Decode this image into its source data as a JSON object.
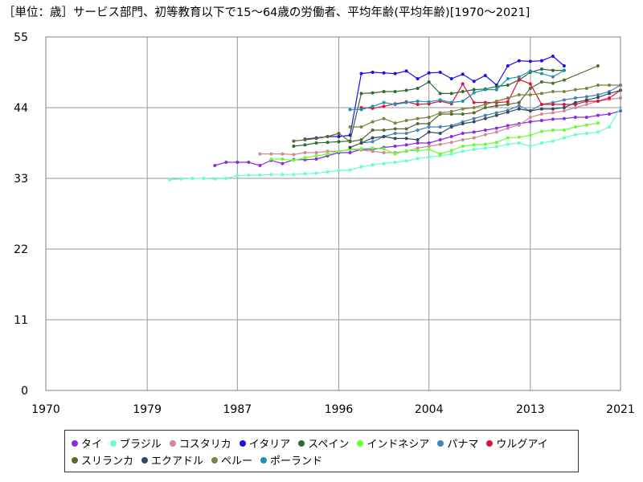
{
  "chart_data": {
    "type": "line",
    "title": "［単位：歳］サービス部門、初等教育以下で15～64歳の労働者、平均年齢(平均年齢)[1970～2021]",
    "xlabel": "",
    "ylabel": "",
    "xlim": [
      1970,
      2021
    ],
    "ylim": [
      0,
      55
    ],
    "xticks": [
      1970,
      1979,
      1987,
      1996,
      2004,
      2013,
      2021
    ],
    "yticks": [
      0,
      11,
      22,
      33,
      44,
      55
    ],
    "grid": true,
    "legend_position": "bottom",
    "series": [
      {
        "name": "タイ",
        "color": "#8a2be2",
        "x": [
          1985,
          1986,
          1987,
          1988,
          1989,
          1990,
          1991,
          1992,
          1993,
          1994,
          1995,
          1996,
          1997,
          1998,
          1999,
          2000,
          2001,
          2002,
          2003,
          2004,
          2005,
          2006,
          2007,
          2008,
          2009,
          2010,
          2011,
          2012,
          2013,
          2014,
          2015,
          2016,
          2017,
          2018,
          2019,
          2020,
          2021
        ],
        "y": [
          35.0,
          35.5,
          35.5,
          35.5,
          35.0,
          35.8,
          35.3,
          35.9,
          35.9,
          36.0,
          36.5,
          37.0,
          37.0,
          37.5,
          37.5,
          37.8,
          38.0,
          38.2,
          38.5,
          38.5,
          39.0,
          39.5,
          40.0,
          40.2,
          40.5,
          40.8,
          41.2,
          41.5,
          41.8,
          42.0,
          42.2,
          42.3,
          42.5,
          42.5,
          42.8,
          43.0,
          43.5
        ]
      },
      {
        "name": "ブラジル",
        "color": "#66ffcc",
        "x": [
          1981,
          1982,
          1983,
          1984,
          1985,
          1986,
          1987,
          1988,
          1989,
          1990,
          1991,
          1992,
          1993,
          1994,
          1995,
          1996,
          1997,
          1998,
          1999,
          2000,
          2001,
          2002,
          2003,
          2004,
          2005,
          2006,
          2007,
          2008,
          2009,
          2010,
          2011,
          2012,
          2013,
          2014,
          2015,
          2016,
          2017,
          2018,
          2019,
          2020,
          2021
        ],
        "y": [
          32.8,
          32.9,
          33.0,
          33.0,
          32.9,
          33.0,
          33.4,
          33.5,
          33.5,
          33.6,
          33.6,
          33.6,
          33.7,
          33.8,
          34.0,
          34.2,
          34.3,
          34.8,
          35.1,
          35.3,
          35.5,
          35.7,
          36.1,
          36.3,
          36.5,
          36.8,
          37.2,
          37.5,
          37.7,
          37.9,
          38.3,
          38.5,
          38.0,
          38.5,
          38.8,
          39.3,
          39.8,
          40.0,
          40.2,
          41.0,
          44.0
        ]
      },
      {
        "name": "コスタリカ",
        "color": "#cd8c95",
        "x": [
          1989,
          1990,
          1991,
          1992,
          1993,
          1994,
          1995,
          1996,
          1997,
          1998,
          1999,
          2000,
          2001,
          2002,
          2003,
          2004,
          2005,
          2006,
          2007,
          2008,
          2009,
          2010,
          2011,
          2012,
          2013,
          2014,
          2015,
          2016,
          2017,
          2018,
          2019,
          2020,
          2021
        ],
        "y": [
          36.8,
          36.8,
          36.8,
          36.7,
          37.0,
          37.0,
          37.2,
          37.2,
          37.5,
          37.4,
          37.2,
          37.0,
          37.0,
          37.2,
          37.7,
          38.0,
          38.3,
          38.6,
          39.0,
          39.3,
          39.8,
          40.2,
          40.8,
          41.3,
          42.5,
          43.0,
          43.2,
          43.5,
          44.0,
          44.5,
          45.0,
          45.3,
          45.5
        ]
      },
      {
        "name": "イタリア",
        "color": "#2010e0",
        "x": [
          1993,
          1994,
          1995,
          1996,
          1997,
          1998,
          1999,
          2000,
          2001,
          2002,
          2003,
          2004,
          2005,
          2006,
          2007,
          2008,
          2009,
          2010,
          2011,
          2012,
          2013,
          2014,
          2015,
          2016
        ],
        "y": [
          39.1,
          39.3,
          39.5,
          39.5,
          39.7,
          49.3,
          49.5,
          49.4,
          49.3,
          49.7,
          48.5,
          49.4,
          49.5,
          48.5,
          49.2,
          48.1,
          49.0,
          47.5,
          50.5,
          51.3,
          51.2,
          51.3,
          52.0,
          50.5
        ]
      },
      {
        "name": "スペイン",
        "color": "#2e6b2e",
        "x": [
          1992,
          1993,
          1994,
          1995,
          1996,
          1997,
          1998,
          1999,
          2000,
          2001,
          2002,
          2003,
          2004,
          2005,
          2006,
          2007,
          2008,
          2009,
          2010,
          2011,
          2012,
          2013,
          2014,
          2015,
          2016
        ],
        "y": [
          38.0,
          38.2,
          38.5,
          38.6,
          38.7,
          38.8,
          46.2,
          46.3,
          46.5,
          46.5,
          46.7,
          47.0,
          48.0,
          46.2,
          46.2,
          46.5,
          46.8,
          46.9,
          47.3,
          47.5,
          48.3,
          49.5,
          50.0,
          49.8,
          49.8
        ]
      },
      {
        "name": "インドネシア",
        "color": "#66ff33",
        "x": [
          1990,
          1991,
          1992,
          1993,
          1994,
          1995,
          1996,
          1997,
          1998,
          1999,
          2000,
          2001,
          2002,
          2003,
          2004,
          2005,
          2006,
          2007,
          2008,
          2009,
          2010,
          2011,
          2012,
          2013,
          2014,
          2015,
          2016,
          2017,
          2018,
          2019
        ],
        "y": [
          36.0,
          36.0,
          35.8,
          36.2,
          36.5,
          36.8,
          37.2,
          37.5,
          37.6,
          37.7,
          37.6,
          36.8,
          37.3,
          37.3,
          37.5,
          36.8,
          37.3,
          38.0,
          38.2,
          38.3,
          38.6,
          39.3,
          39.4,
          39.7,
          40.3,
          40.5,
          40.5,
          41.0,
          41.3,
          41.6
        ]
      },
      {
        "name": "パナマ",
        "color": "#4682b4",
        "x": [
          1998,
          1999,
          2000,
          2001,
          2002,
          2003,
          2004,
          2005,
          2006,
          2007,
          2008,
          2009,
          2010,
          2011,
          2012,
          2013,
          2014,
          2015,
          2016,
          2017,
          2018,
          2019,
          2020,
          2021
        ],
        "y": [
          38.5,
          38.7,
          39.5,
          40.0,
          40.0,
          40.5,
          41.0,
          41.0,
          41.2,
          41.8,
          42.3,
          42.8,
          43.2,
          43.6,
          44.3,
          43.5,
          44.5,
          44.8,
          45.2,
          45.5,
          45.7,
          46.0,
          46.5,
          47.5
        ]
      },
      {
        "name": "ウルグアイ",
        "color": "#dc143c",
        "x": [
          1998,
          1999,
          2000,
          2001,
          2002,
          2003,
          2004,
          2005,
          2006,
          2007,
          2008,
          2009,
          2010,
          2011,
          2012,
          2013,
          2014,
          2015,
          2016,
          2017,
          2018,
          2019,
          2020,
          2021
        ],
        "y": [
          44.0,
          43.9,
          44.2,
          44.6,
          44.9,
          44.5,
          44.6,
          45.0,
          44.6,
          47.7,
          44.8,
          44.8,
          44.8,
          44.9,
          48.4,
          47.7,
          44.5,
          44.5,
          44.5,
          44.5,
          45.0,
          45.0,
          45.5,
          46.7
        ]
      },
      {
        "name": "スリランカ",
        "color": "#556b2f",
        "x": [
          1992,
          1993,
          1994,
          1995,
          1996,
          1997,
          1998,
          1999,
          2000,
          2001,
          2002,
          2003,
          2004,
          2005,
          2006,
          2007,
          2008,
          2009,
          2010,
          2011,
          2012,
          2013,
          2014,
          2015,
          2016,
          2019
        ],
        "y": [
          38.8,
          39.0,
          39.2,
          39.5,
          40.0,
          38.7,
          39.0,
          40.5,
          40.5,
          40.7,
          40.7,
          41.5,
          41.5,
          43.0,
          43.0,
          43.0,
          43.2,
          44.0,
          44.3,
          44.5,
          44.8,
          47.0,
          48.0,
          47.8,
          48.3,
          50.5
        ]
      },
      {
        "name": "エクアドル",
        "color": "#34495e",
        "x": [
          1997,
          1998,
          1999,
          2000,
          2001,
          2002,
          2003,
          2004,
          2005,
          2006,
          2007,
          2008,
          2009,
          2010,
          2011,
          2012,
          2013,
          2014,
          2015,
          2016,
          2017,
          2018,
          2019,
          2020,
          2021
        ],
        "y": [
          37.8,
          38.5,
          39.3,
          39.5,
          39.2,
          39.2,
          39.0,
          40.2,
          40.0,
          41.0,
          41.5,
          41.8,
          42.3,
          42.8,
          43.3,
          43.8,
          43.5,
          43.8,
          43.8,
          44.0,
          44.8,
          45.2,
          45.6,
          46.2,
          46.7
        ]
      },
      {
        "name": "ペルー",
        "color": "#808040",
        "x": [
          1997,
          1998,
          1999,
          2000,
          2001,
          2002,
          2003,
          2004,
          2005,
          2006,
          2007,
          2008,
          2009,
          2010,
          2011,
          2012,
          2013,
          2014,
          2015,
          2016,
          2017,
          2018,
          2019,
          2020,
          2021
        ],
        "y": [
          41.0,
          41.0,
          41.8,
          42.3,
          41.6,
          42.0,
          42.3,
          42.5,
          43.2,
          43.4,
          43.8,
          44.0,
          44.5,
          45.0,
          45.5,
          46.0,
          46.0,
          46.2,
          46.5,
          46.5,
          46.8,
          47.0,
          47.5,
          47.5,
          47.5
        ]
      },
      {
        "name": "ポーランド",
        "color": "#1e90b0",
        "x": [
          1997,
          1998,
          1999,
          2000,
          2001,
          2002,
          2003,
          2004,
          2005,
          2006,
          2007,
          2008,
          2009,
          2010,
          2011,
          2012,
          2013,
          2014,
          2015,
          2016
        ],
        "y": [
          43.7,
          43.7,
          44.2,
          44.8,
          44.5,
          44.8,
          45.0,
          44.9,
          45.2,
          44.8,
          45.0,
          46.3,
          46.8,
          46.8,
          48.5,
          48.8,
          49.7,
          49.3,
          48.8,
          49.8
        ]
      }
    ]
  }
}
